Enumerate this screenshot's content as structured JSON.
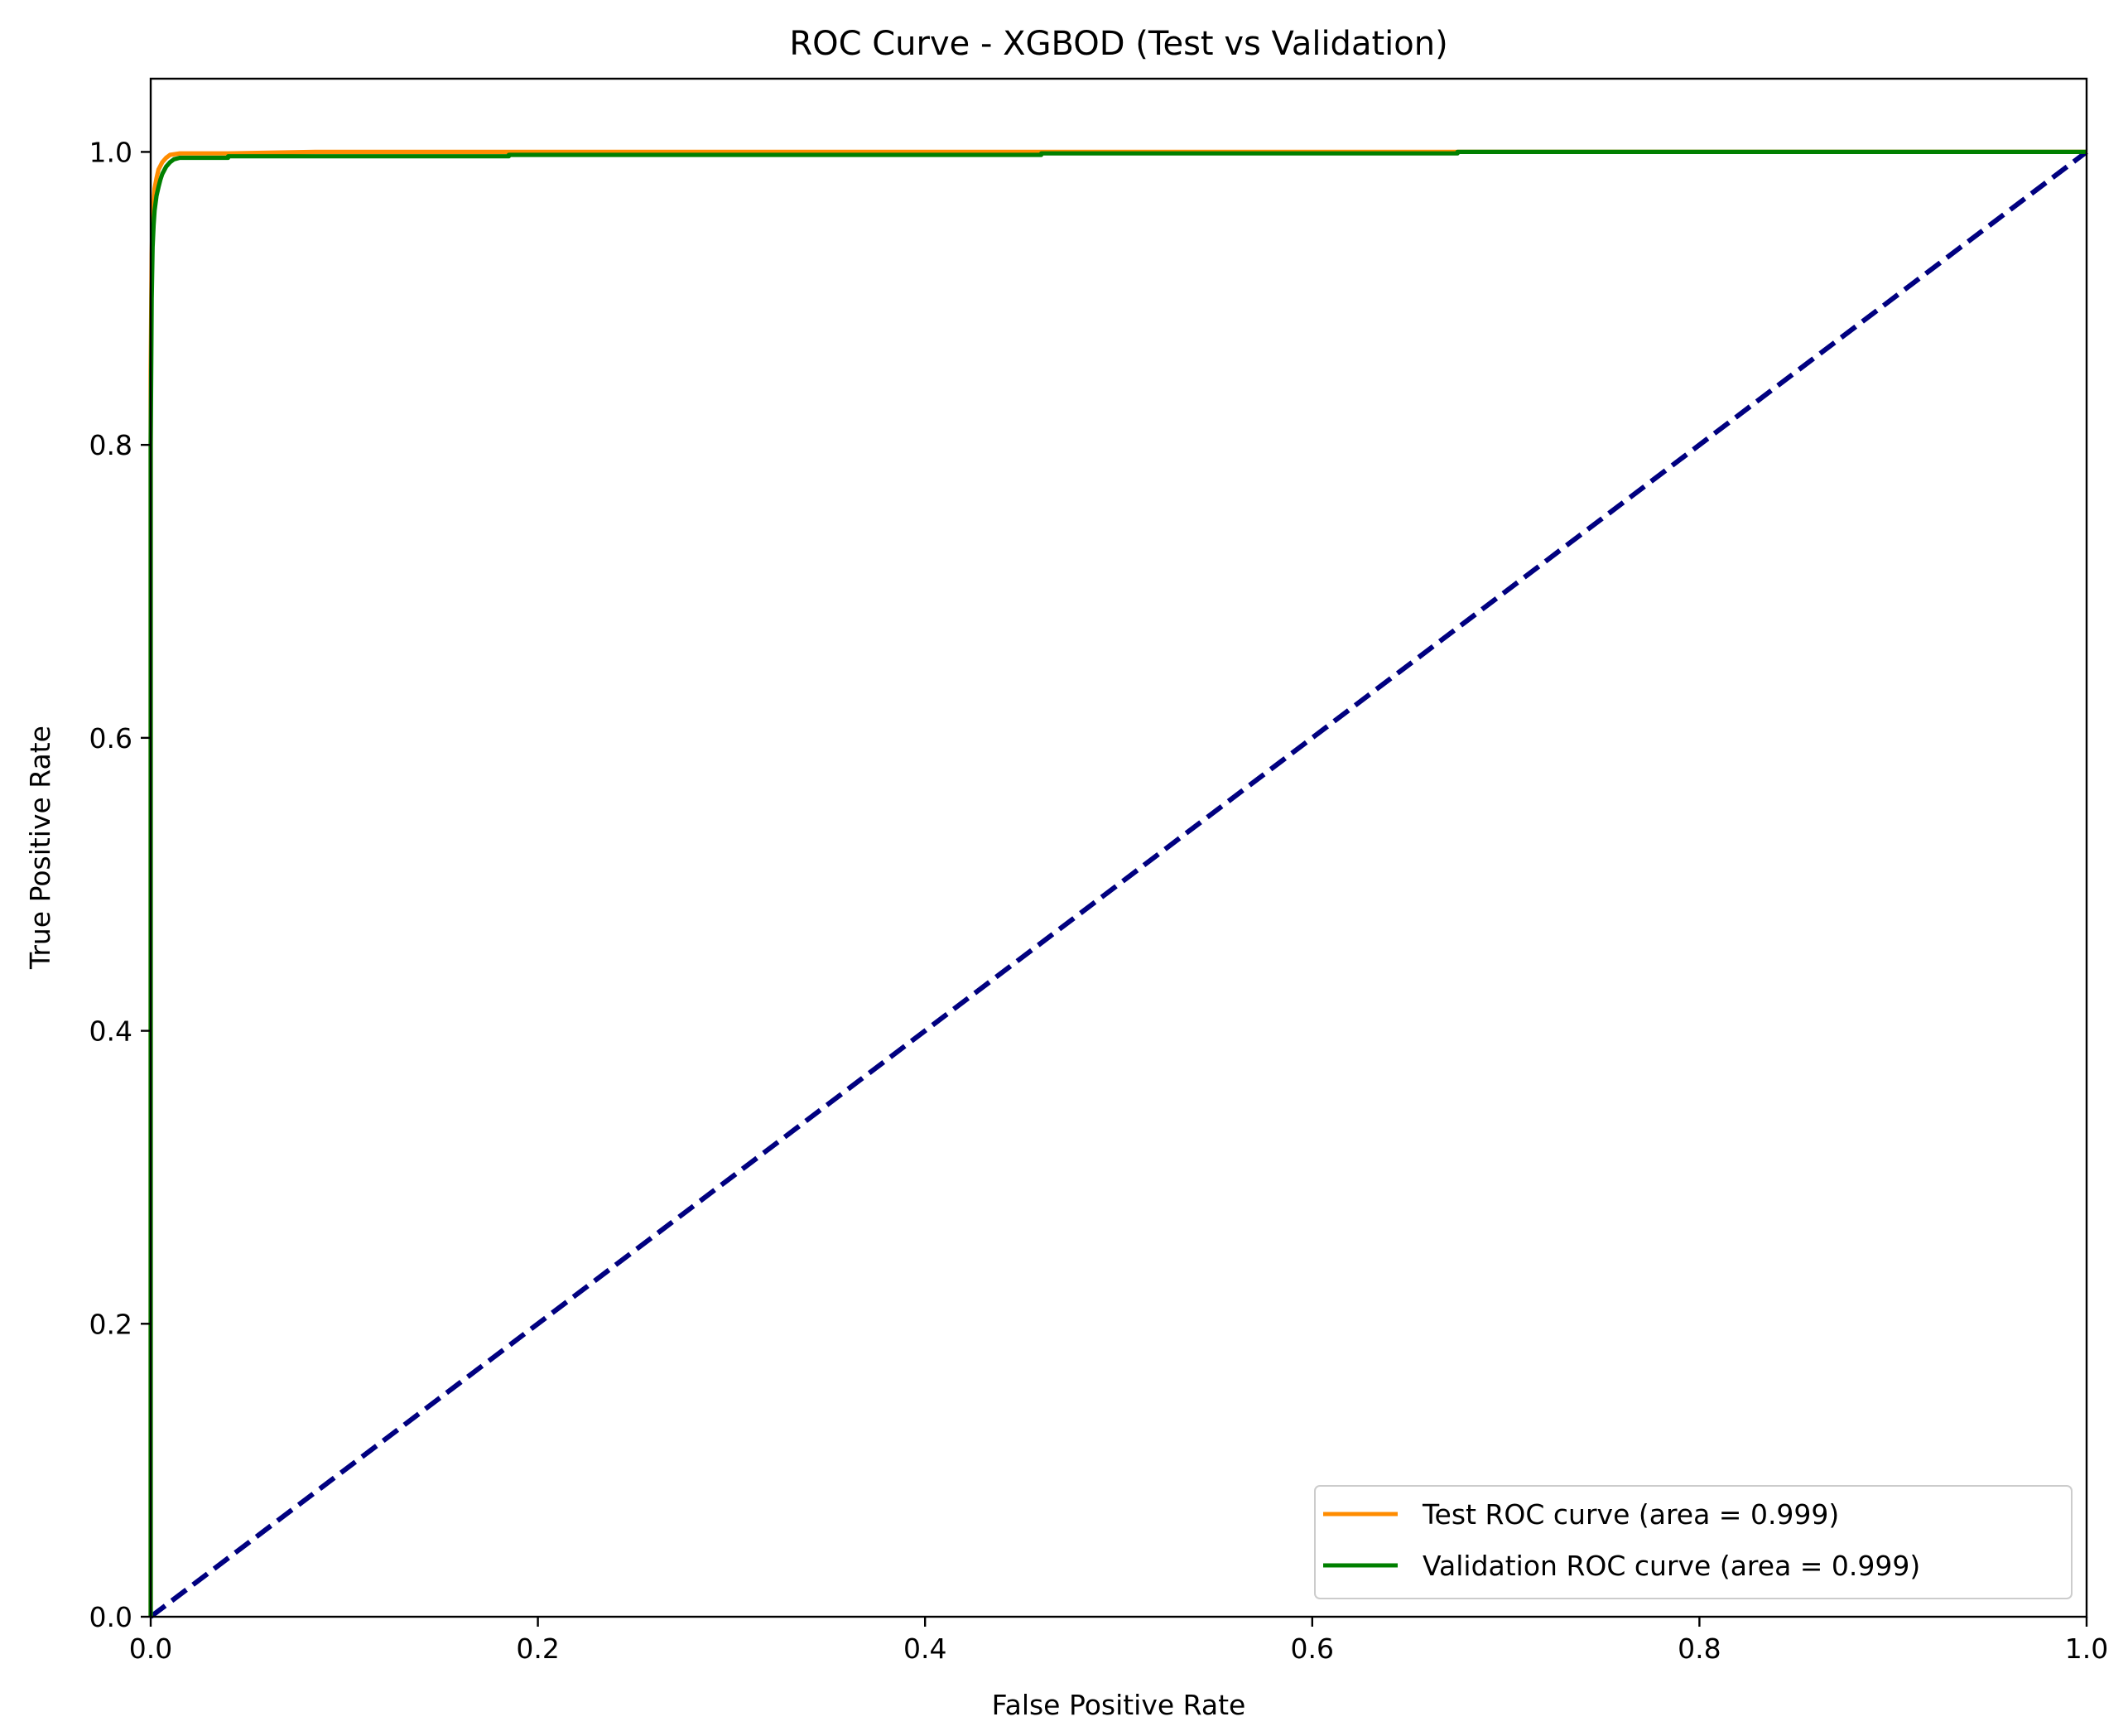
{
  "chart_data": {
    "type": "line",
    "title": "ROC Curve - XGBOD (Test vs Validation)",
    "xlabel": "False Positive Rate",
    "ylabel": "True Positive Rate",
    "xlim": [
      0.0,
      1.0
    ],
    "ylim": [
      0.0,
      1.05
    ],
    "xticks": [
      0.0,
      0.2,
      0.4,
      0.6,
      0.8,
      1.0
    ],
    "xtick_labels": [
      "0.0",
      "0.2",
      "0.4",
      "0.6",
      "0.8",
      "1.0"
    ],
    "yticks": [
      0.0,
      0.2,
      0.4,
      0.6,
      0.8,
      1.0
    ],
    "ytick_labels": [
      "0.0",
      "0.2",
      "0.4",
      "0.6",
      "0.8",
      "1.0"
    ],
    "grid": false,
    "legend_position": "lower-right",
    "series": [
      {
        "name": "Test ROC curve (area = 0.999)",
        "color": "#ff8c00",
        "style": "solid",
        "x": [
          0.0,
          0.0,
          0.0005,
          0.001,
          0.0015,
          0.002,
          0.003,
          0.004,
          0.006,
          0.008,
          0.01,
          0.015,
          0.02,
          0.04,
          0.085,
          0.2,
          0.5,
          0.83,
          1.0
        ],
        "y": [
          0.0,
          0.85,
          0.93,
          0.955,
          0.965,
          0.975,
          0.982,
          0.988,
          0.993,
          0.996,
          0.998,
          0.999,
          0.999,
          0.999,
          1.0,
          1.0,
          1.0,
          1.0,
          1.0
        ]
      },
      {
        "name": "Validation ROC curve (area = 0.999)",
        "color": "#008000",
        "style": "solid",
        "x": [
          0.0,
          0.0,
          0.0005,
          0.001,
          0.0015,
          0.002,
          0.003,
          0.004,
          0.005,
          0.006,
          0.008,
          0.01,
          0.012,
          0.015,
          0.04,
          0.04,
          0.185,
          0.185,
          0.46,
          0.46,
          0.675,
          0.675,
          1.0
        ],
        "y": [
          0.0,
          0.8,
          0.9,
          0.935,
          0.95,
          0.96,
          0.97,
          0.976,
          0.981,
          0.985,
          0.99,
          0.993,
          0.995,
          0.996,
          0.996,
          0.997,
          0.997,
          0.998,
          0.998,
          0.999,
          0.999,
          1.0,
          1.0
        ]
      },
      {
        "name": "",
        "color": "#000080",
        "style": "dashed",
        "x": [
          0.0,
          1.0
        ],
        "y": [
          0.0,
          1.0
        ]
      }
    ]
  }
}
